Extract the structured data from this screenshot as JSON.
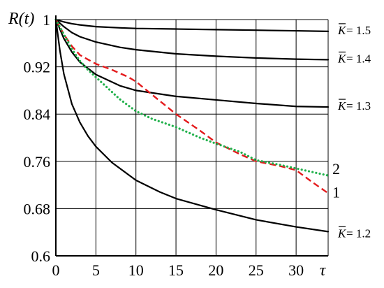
{
  "chart_data": {
    "type": "line",
    "title": "",
    "ylabel": "R(t)",
    "xlabel": "τ",
    "xlim": [
      0,
      34
    ],
    "ylim": [
      0.6,
      1.0
    ],
    "x_ticks": [
      0,
      5,
      10,
      15,
      20,
      25,
      30
    ],
    "y_ticks": [
      0.6,
      0.68,
      0.76,
      0.84,
      0.92,
      1
    ],
    "x_tick_labels": [
      "0",
      "5",
      "10",
      "15",
      "20",
      "25",
      "30"
    ],
    "y_tick_labels": [
      "0.6",
      "0.68",
      "0.76",
      "0.84",
      "0.92",
      "1"
    ],
    "grid": true,
    "series": [
      {
        "name": "K̄ = 1.5",
        "color": "#000000",
        "style": "solid",
        "x": [
          0,
          1,
          2,
          3,
          5,
          8,
          10,
          15,
          20,
          25,
          30,
          34
        ],
        "y": [
          1.0,
          0.996,
          0.993,
          0.991,
          0.988,
          0.986,
          0.985,
          0.984,
          0.983,
          0.982,
          0.981,
          0.98
        ]
      },
      {
        "name": "K̄ = 1.4",
        "color": "#000000",
        "style": "solid",
        "x": [
          0,
          1,
          2,
          3,
          5,
          8,
          10,
          15,
          20,
          25,
          30,
          34
        ],
        "y": [
          1.0,
          0.988,
          0.978,
          0.971,
          0.962,
          0.953,
          0.949,
          0.942,
          0.938,
          0.935,
          0.933,
          0.932
        ]
      },
      {
        "name": "K̄ = 1.3",
        "color": "#000000",
        "style": "solid",
        "x": [
          0,
          1,
          2,
          3,
          5,
          8,
          10,
          15,
          20,
          25,
          30,
          34
        ],
        "y": [
          1.0,
          0.968,
          0.945,
          0.928,
          0.907,
          0.888,
          0.88,
          0.87,
          0.864,
          0.858,
          0.853,
          0.852
        ]
      },
      {
        "name": "K̄ = 1.2",
        "color": "#000000",
        "style": "solid",
        "x": [
          0,
          0.5,
          1,
          2,
          3,
          4,
          5,
          7,
          10,
          13,
          15,
          20,
          25,
          30,
          34
        ],
        "y": [
          1.0,
          0.948,
          0.908,
          0.857,
          0.826,
          0.803,
          0.785,
          0.758,
          0.728,
          0.708,
          0.697,
          0.678,
          0.661,
          0.649,
          0.641
        ]
      },
      {
        "name": "1",
        "color": "#e41a1c",
        "style": "dashed",
        "x": [
          0,
          1,
          2,
          3,
          5,
          7,
          9,
          10,
          12,
          15,
          18,
          20,
          23,
          25,
          28,
          30,
          32,
          34
        ],
        "y": [
          1.0,
          0.975,
          0.955,
          0.94,
          0.925,
          0.915,
          0.903,
          0.895,
          0.873,
          0.84,
          0.812,
          0.792,
          0.772,
          0.76,
          0.752,
          0.745,
          0.725,
          0.706
        ]
      },
      {
        "name": "2",
        "color": "#22b14c",
        "style": "dotted",
        "x": [
          0,
          1,
          2,
          3,
          4,
          6,
          8,
          10,
          12,
          15,
          18,
          20,
          23,
          25,
          28,
          30,
          32,
          34
        ],
        "y": [
          1.0,
          0.975,
          0.95,
          0.93,
          0.915,
          0.89,
          0.865,
          0.845,
          0.832,
          0.818,
          0.8,
          0.79,
          0.776,
          0.762,
          0.754,
          0.748,
          0.742,
          0.736
        ]
      }
    ],
    "curve_labels": [
      {
        "prefix": "K",
        "text": " = 1.5",
        "series_index": 0
      },
      {
        "prefix": "K",
        "text": " = 1.4",
        "series_index": 1
      },
      {
        "prefix": "K",
        "text": " = 1.3",
        "series_index": 2
      },
      {
        "prefix": "K",
        "text": " = 1.2",
        "series_index": 3
      }
    ],
    "series_end_labels": [
      {
        "text": "2",
        "series_index": 5
      },
      {
        "text": "1",
        "series_index": 4
      }
    ]
  }
}
